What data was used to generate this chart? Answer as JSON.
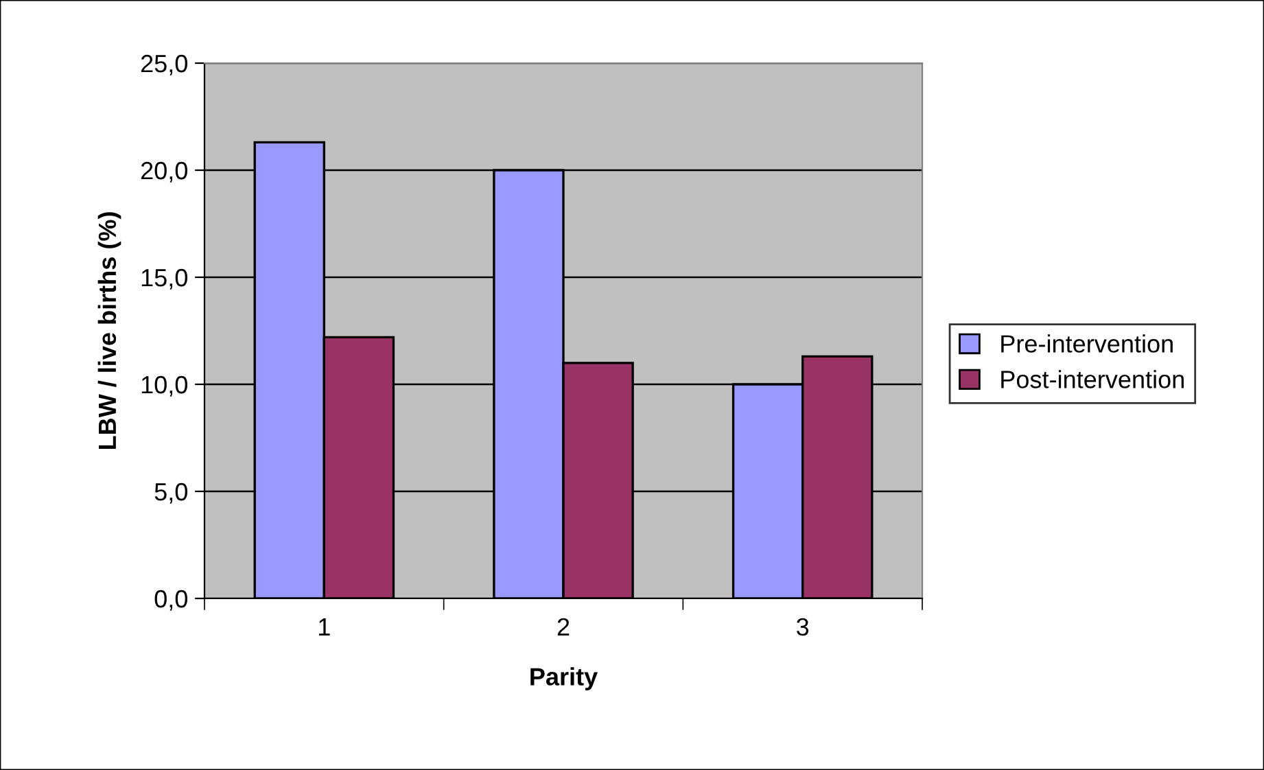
{
  "chart_data": {
    "type": "bar",
    "xlabel": "Parity",
    "ylabel": "LBW / live births (%)",
    "categories": [
      "1",
      "2",
      "3"
    ],
    "series": [
      {
        "name": "Pre-intervention",
        "color": "#9999ff",
        "values": [
          21.3,
          20.0,
          10.0
        ]
      },
      {
        "name": "Post-intervention",
        "color": "#993366",
        "values": [
          12.2,
          11.0,
          11.3
        ]
      }
    ],
    "ylim": [
      0,
      25
    ],
    "yticks": [
      {
        "value": 0,
        "label": "0,0"
      },
      {
        "value": 5,
        "label": "5,0"
      },
      {
        "value": 10,
        "label": "10,0"
      },
      {
        "value": 15,
        "label": "15,0"
      },
      {
        "value": 20,
        "label": "20,0"
      },
      {
        "value": 25,
        "label": "25,0"
      }
    ],
    "grid": "y",
    "legend": "right"
  }
}
